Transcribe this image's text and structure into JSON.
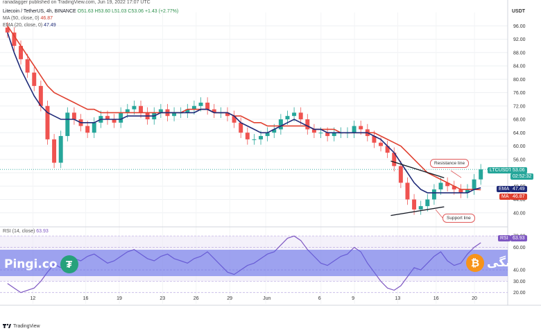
{
  "header": {
    "published_by": "ranadagger published on TradingView.com, Jun 19, 2022 17:07 UTC",
    "symbol_line": "Litecoin / TetherUS, 4h, BINANCE",
    "ohlc": "O51.63  H53.60  L51.03  C53.06  +1.43 (+2.77%)",
    "ma_line": "MA (50, close, 0)",
    "ma_value": "46.87",
    "ema_line": "EMA (20, close, 0)",
    "ema_value": "47.49",
    "rsi_line": "RSI (14, close)",
    "rsi_value": "63.93"
  },
  "axis": {
    "currency": "USDT",
    "price_ticks": [
      "96.00",
      "92.00",
      "88.00",
      "84.00",
      "80.00",
      "76.00",
      "72.00",
      "68.00",
      "64.00",
      "60.00",
      "56.00",
      "52.00",
      "48.00",
      "44.00",
      "40.00"
    ],
    "rsi_ticks": [
      "70.00",
      "60.00",
      "40.00",
      "30.00",
      "20.00"
    ],
    "date_ticks": [
      "12",
      "16",
      "19",
      "23",
      "26",
      "29",
      "Jun",
      "6",
      "9",
      "13",
      "16",
      "20"
    ]
  },
  "badges": {
    "ticker": "LTCUSDT",
    "price": "53.06",
    "countdown": "02:52:32",
    "ema_tag": "EMA",
    "ema_value": "47.49",
    "ma_tag": "MA",
    "ma_value": "46.87",
    "rsi_tag": "RSI",
    "rsi_value": "63.93"
  },
  "annotations": {
    "resistance": "Resistance line",
    "support": "Support line"
  },
  "branding": {
    "left_text": "Pingi.co",
    "right_text": "پینگی",
    "tradingview": "TradingView",
    "tether_symbol": "₮",
    "bitcoin_symbol": "₿"
  },
  "colors": {
    "up": "#26a69a",
    "down": "#ef5350",
    "ema": "#1e2a78",
    "ma": "#e0402f",
    "rsi": "#7e57c2",
    "band": "#5560e6",
    "tether": "#26a17b",
    "bitcoin": "#f7931a"
  },
  "chart_data": {
    "type": "candlestick",
    "title": "Litecoin / TetherUS, 4h, BINANCE",
    "ylim": [
      36,
      100
    ],
    "x_ticks": [
      "12",
      "16",
      "19",
      "23",
      "26",
      "29",
      "Jun",
      "6",
      "9",
      "13",
      "16",
      "20"
    ],
    "price_path": [
      94,
      90,
      86,
      82,
      78,
      72,
      62,
      55,
      63,
      70,
      68,
      66,
      64,
      67,
      69,
      68,
      67,
      70,
      71,
      72,
      70,
      68,
      70,
      71,
      69,
      70,
      70,
      71,
      72,
      73,
      71,
      70,
      70,
      69,
      67,
      64,
      62,
      62,
      63,
      64,
      65,
      68,
      69,
      70,
      68,
      65,
      64,
      64,
      63,
      64,
      64,
      64,
      66,
      65,
      63,
      61,
      60,
      58,
      54,
      49,
      44,
      41,
      42,
      44,
      47,
      49,
      48,
      47,
      46,
      47,
      50,
      53
    ],
    "ema20": [
      94,
      88,
      83,
      79,
      75,
      72,
      70,
      69,
      68,
      68,
      68,
      67,
      67,
      67,
      68,
      68,
      68,
      68,
      69,
      69,
      69,
      69,
      69,
      70,
      70,
      70,
      70,
      70,
      70,
      71,
      71,
      70,
      70,
      70,
      69,
      67,
      66,
      65,
      64,
      64,
      65,
      66,
      67,
      68,
      67,
      66,
      65,
      65,
      64,
      64,
      64,
      64,
      64,
      64,
      64,
      63,
      62,
      60,
      58,
      55,
      52,
      49,
      47,
      46,
      46,
      46,
      46,
      46,
      46,
      46,
      47,
      47.5
    ],
    "ma50": [
      96,
      93,
      90,
      87,
      84,
      81,
      78,
      76,
      75,
      74,
      73,
      72,
      71,
      71,
      70,
      70,
      70,
      70,
      70,
      70,
      70,
      70,
      70,
      70,
      70,
      70,
      70,
      71,
      71,
      71,
      71,
      70,
      70,
      70,
      69,
      69,
      68,
      67,
      67,
      66,
      66,
      66,
      66,
      66,
      66,
      66,
      65,
      65,
      65,
      65,
      64,
      64,
      64,
      64,
      64,
      64,
      63,
      62,
      61,
      60,
      58,
      56,
      54,
      52,
      51,
      50,
      49,
      48,
      47,
      47,
      47,
      46.9
    ],
    "resistance_line": [
      [
        57.5,
        55.5
      ],
      [
        65.5,
        50.5
      ]
    ],
    "support_line": [
      [
        57.5,
        39.2
      ],
      [
        65.5,
        41.8
      ]
    ],
    "rsi": {
      "ylim": [
        10,
        75
      ],
      "values": [
        28,
        24,
        20,
        22,
        24,
        30,
        38,
        45,
        42,
        46,
        50,
        48,
        52,
        54,
        50,
        46,
        48,
        52,
        56,
        58,
        54,
        50,
        48,
        52,
        54,
        50,
        48,
        46,
        50,
        52,
        56,
        50,
        44,
        38,
        36,
        40,
        44,
        46,
        50,
        54,
        56,
        62,
        68,
        70,
        66,
        58,
        52,
        46,
        44,
        48,
        52,
        54,
        60,
        56,
        46,
        38,
        30,
        24,
        22,
        26,
        34,
        42,
        40,
        46,
        52,
        56,
        48,
        44,
        46,
        54,
        60,
        64
      ]
    }
  }
}
